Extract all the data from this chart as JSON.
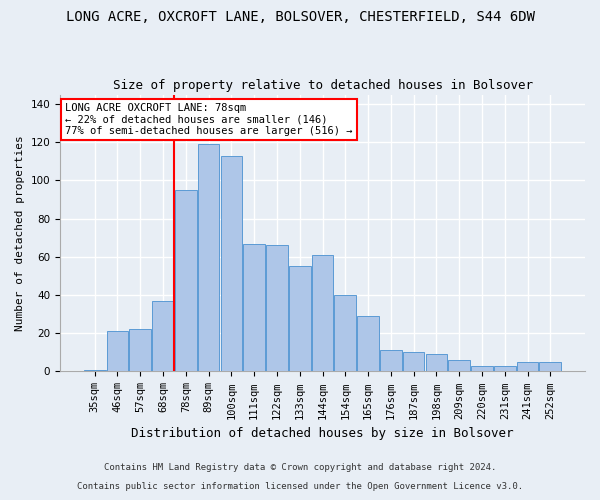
{
  "title": "LONG ACRE, OXCROFT LANE, BOLSOVER, CHESTERFIELD, S44 6DW",
  "subtitle": "Size of property relative to detached houses in Bolsover",
  "xlabel": "Distribution of detached houses by size in Bolsover",
  "ylabel": "Number of detached properties",
  "footnote1": "Contains HM Land Registry data © Crown copyright and database right 2024.",
  "footnote2": "Contains public sector information licensed under the Open Government Licence v3.0.",
  "categories": [
    "35sqm",
    "46sqm",
    "57sqm",
    "68sqm",
    "78sqm",
    "89sqm",
    "100sqm",
    "111sqm",
    "122sqm",
    "133sqm",
    "144sqm",
    "154sqm",
    "165sqm",
    "176sqm",
    "187sqm",
    "198sqm",
    "209sqm",
    "220sqm",
    "231sqm",
    "241sqm",
    "252sqm"
  ],
  "bar_values": [
    1,
    21,
    22,
    37,
    95,
    119,
    113,
    67,
    66,
    55,
    61,
    40,
    29,
    11,
    10,
    9,
    6,
    3,
    3,
    5,
    5
  ],
  "bar_color": "#aec6e8",
  "bar_edge_color": "#5b9bd5",
  "vline_index": 4,
  "vline_color": "red",
  "annotation_text": "LONG ACRE OXCROFT LANE: 78sqm\n← 22% of detached houses are smaller (146)\n77% of semi-detached houses are larger (516) →",
  "annotation_box_color": "white",
  "annotation_box_edge": "red",
  "ylim": [
    0,
    145
  ],
  "background_color": "#e8eef5",
  "grid_color": "white",
  "title_fontsize": 10,
  "subtitle_fontsize": 9,
  "ylabel_fontsize": 8,
  "xlabel_fontsize": 9,
  "tick_fontsize": 7.5,
  "footnote_fontsize": 6.5,
  "annotation_fontsize": 7.5
}
